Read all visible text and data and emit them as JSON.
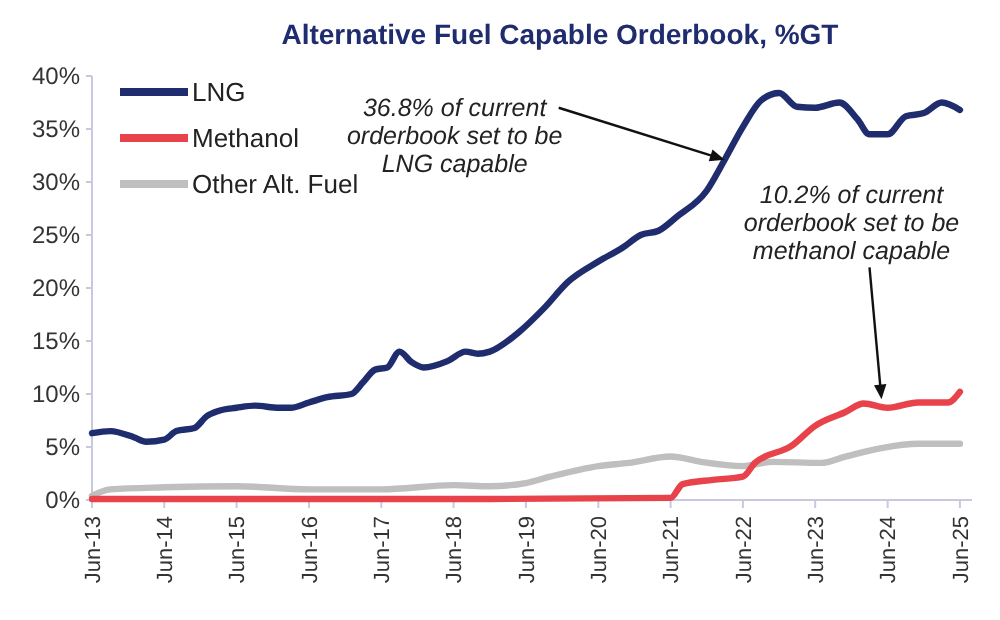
{
  "chart_data": {
    "type": "line",
    "title": "Alternative Fuel Capable Orderbook, %GT",
    "xlim": [
      "2013-06",
      "2025-08"
    ],
    "xticks": [
      {
        "value": "2013-06",
        "label": "Jun-13"
      },
      {
        "value": "2014-06",
        "label": "Jun-14"
      },
      {
        "value": "2015-06",
        "label": "Jun-15"
      },
      {
        "value": "2016-06",
        "label": "Jun-16"
      },
      {
        "value": "2017-06",
        "label": "Jun-17"
      },
      {
        "value": "2018-06",
        "label": "Jun-18"
      },
      {
        "value": "2019-06",
        "label": "Jun-19"
      },
      {
        "value": "2020-06",
        "label": "Jun-20"
      },
      {
        "value": "2021-06",
        "label": "Jun-21"
      },
      {
        "value": "2022-06",
        "label": "Jun-22"
      },
      {
        "value": "2023-06",
        "label": "Jun-23"
      },
      {
        "value": "2024-06",
        "label": "Jun-24"
      },
      {
        "value": "2025-06",
        "label": "Jun-25"
      }
    ],
    "ylim": [
      0,
      40
    ],
    "yticks": [
      {
        "value": 0,
        "label": "0%"
      },
      {
        "value": 5,
        "label": "5%"
      },
      {
        "value": 10,
        "label": "10%"
      },
      {
        "value": 15,
        "label": "15%"
      },
      {
        "value": 20,
        "label": "20%"
      },
      {
        "value": 25,
        "label": "25%"
      },
      {
        "value": 30,
        "label": "30%"
      },
      {
        "value": 35,
        "label": "35%"
      },
      {
        "value": 40,
        "label": "40%"
      }
    ],
    "grid": false,
    "legend": "top left",
    "marker": "none",
    "line_style": "solid",
    "series": [
      {
        "name": "LNG",
        "color": "#1f2d6e",
        "x": [
          "2013-06",
          "2013-09",
          "2014-01",
          "2014-03",
          "2014-06",
          "2014-08",
          "2014-11",
          "2015-01",
          "2015-03",
          "2015-06",
          "2015-09",
          "2016-01",
          "2016-03",
          "2016-06",
          "2016-09",
          "2017-01",
          "2017-03",
          "2017-05",
          "2017-07",
          "2017-09",
          "2017-11",
          "2018-01",
          "2018-05",
          "2018-08",
          "2018-10",
          "2018-12",
          "2019-05",
          "2019-09",
          "2020-01",
          "2020-06",
          "2020-10",
          "2021-01",
          "2021-04",
          "2021-07",
          "2021-12",
          "2022-03",
          "2022-06",
          "2022-09",
          "2022-12",
          "2023-03",
          "2023-06",
          "2023-10",
          "2024-01",
          "2024-03",
          "2024-06",
          "2024-09",
          "2024-12",
          "2025-03",
          "2025-06"
        ],
        "values": [
          6.3,
          6.5,
          5.9,
          5.5,
          5.7,
          6.5,
          6.8,
          7.9,
          8.4,
          8.7,
          8.9,
          8.7,
          8.7,
          9.2,
          9.7,
          10.0,
          11.1,
          12.3,
          12.5,
          14.0,
          13.0,
          12.5,
          13.1,
          14.0,
          13.8,
          14.0,
          15.9,
          18.1,
          20.6,
          22.5,
          23.8,
          25.0,
          25.4,
          26.7,
          29.2,
          32.1,
          35.2,
          37.7,
          38.4,
          37.1,
          37.0,
          37.5,
          35.9,
          34.5,
          34.5,
          36.2,
          36.5,
          37.5,
          36.8
        ]
      },
      {
        "name": "Methanol",
        "color": "#e8434a",
        "x": [
          "2013-06",
          "2016-06",
          "2018-12",
          "2021-06",
          "2021-08",
          "2022-01",
          "2022-06",
          "2022-08",
          "2023-02",
          "2023-06",
          "2023-11",
          "2024-02",
          "2024-06",
          "2024-11",
          "2025-04",
          "2025-06"
        ],
        "values": [
          0.1,
          0.1,
          0.1,
          0.2,
          1.5,
          1.9,
          2.2,
          3.5,
          5.1,
          7.0,
          8.3,
          9.1,
          8.7,
          9.2,
          9.2,
          10.2
        ]
      },
      {
        "name": "Other Alt. Fuel",
        "color": "#bfbfbf",
        "x": [
          "2013-06",
          "2013-09",
          "2014-06",
          "2015-06",
          "2016-06",
          "2017-06",
          "2018-06",
          "2018-12",
          "2019-06",
          "2019-10",
          "2020-06",
          "2020-11",
          "2021-06",
          "2021-11",
          "2022-06",
          "2022-11",
          "2023-07",
          "2023-11",
          "2024-05",
          "2024-11",
          "2025-06"
        ],
        "values": [
          0.4,
          1.0,
          1.2,
          1.3,
          1.0,
          1.0,
          1.4,
          1.3,
          1.6,
          2.2,
          3.2,
          3.5,
          4.1,
          3.6,
          3.2,
          3.6,
          3.5,
          4.1,
          4.9,
          5.3,
          5.3
        ]
      }
    ],
    "annotations": [
      {
        "text": "36.8% of current orderbook set to be LNG capable",
        "x": "2022-03",
        "y": 32.1
      },
      {
        "text": "10.2% of current orderbook set to be methanol capable",
        "x": "2024-05",
        "y": 9.5
      }
    ]
  }
}
